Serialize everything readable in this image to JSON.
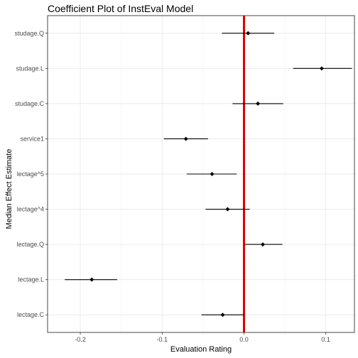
{
  "chart_data": {
    "type": "scatter",
    "title": "Coefficient Plot of InstEval Model",
    "xlabel": "Evaluation Rating",
    "ylabel": "Median Effect Estimate",
    "xlim": [
      -0.24,
      0.135
    ],
    "x_ticks": [
      -0.2,
      -0.1,
      0.0,
      0.1
    ],
    "x_tick_labels": [
      "-0.2",
      "-0.1",
      "0.0",
      "0.1"
    ],
    "grid": true,
    "reference_line": {
      "x": 0,
      "color": "#e00000"
    },
    "categories": [
      "lectage.C",
      "lectage.L",
      "lectage.Q",
      "lectage^4",
      "lectage^5",
      "service1",
      "studage.C",
      "studage.L",
      "studage.Q"
    ],
    "estimates": [
      -0.026,
      -0.186,
      0.023,
      -0.02,
      -0.039,
      -0.071,
      0.017,
      0.095,
      0.005
    ],
    "lower": [
      -0.052,
      -0.219,
      0.001,
      -0.047,
      -0.07,
      -0.098,
      -0.014,
      0.06,
      -0.027
    ],
    "upper": [
      0.0,
      -0.155,
      0.047,
      0.007,
      -0.009,
      -0.044,
      0.048,
      0.132,
      0.037
    ]
  }
}
